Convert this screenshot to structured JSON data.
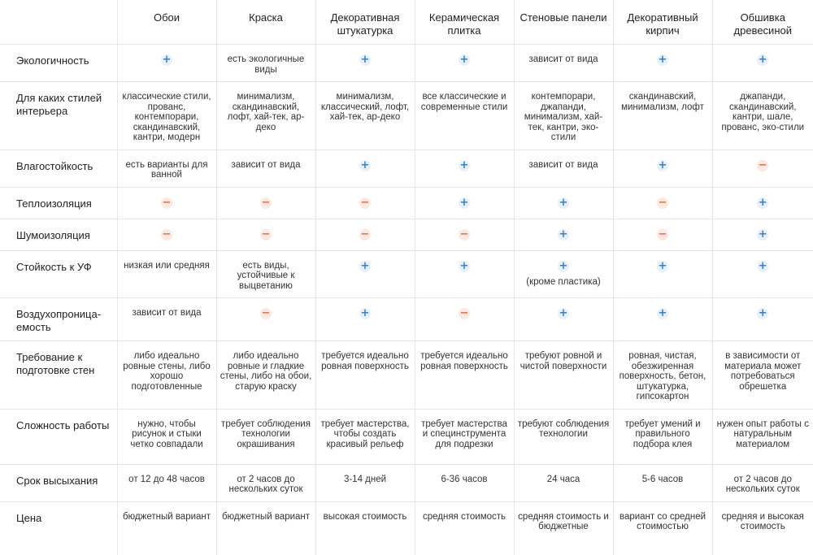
{
  "columns": [
    "Обои",
    "Краска",
    "Декоративная штукатурка",
    "Керамическая плитка",
    "Стеновые панели",
    "Декоративный кирпич",
    "Обшивка древесиной"
  ],
  "rows": [
    {
      "label": "Экологичность",
      "cells": [
        {
          "type": "plus"
        },
        {
          "type": "text",
          "text": "есть экологичные виды"
        },
        {
          "type": "plus"
        },
        {
          "type": "plus"
        },
        {
          "type": "text",
          "text": "зависит от вида"
        },
        {
          "type": "plus"
        },
        {
          "type": "plus"
        }
      ]
    },
    {
      "label": "Для каких стилей интерьера",
      "cells": [
        {
          "type": "text",
          "text": "классические стили, прованс, контемпорари, скандинавский, кантри, модерн"
        },
        {
          "type": "text",
          "text": "минимализм, скандинавский, лофт, хай-тек, ар-деко"
        },
        {
          "type": "text",
          "text": "минимализм, классический, лофт, хай-тек, ар-деко"
        },
        {
          "type": "text",
          "text": "все классические и современные стили"
        },
        {
          "type": "text",
          "text": "контемпорари, джапанди, минимализм, хай-тек, кантри, эко-стили"
        },
        {
          "type": "text",
          "text": "скандинавский, минимализм, лофт"
        },
        {
          "type": "text",
          "text": "джапанди, скандинавский, кантри, шале, прованс, эко-стили"
        }
      ]
    },
    {
      "label": "Влагостойкость",
      "cells": [
        {
          "type": "text",
          "text": "есть варианты для ванной"
        },
        {
          "type": "text",
          "text": "зависит от вида"
        },
        {
          "type": "plus"
        },
        {
          "type": "plus"
        },
        {
          "type": "text",
          "text": "зависит от вида"
        },
        {
          "type": "plus"
        },
        {
          "type": "minus"
        }
      ]
    },
    {
      "label": "Теплоизоляция",
      "cells": [
        {
          "type": "minus"
        },
        {
          "type": "minus"
        },
        {
          "type": "minus"
        },
        {
          "type": "plus"
        },
        {
          "type": "plus"
        },
        {
          "type": "minus"
        },
        {
          "type": "plus"
        }
      ]
    },
    {
      "label": "Шумоизоляция",
      "cells": [
        {
          "type": "minus"
        },
        {
          "type": "minus"
        },
        {
          "type": "minus"
        },
        {
          "type": "minus"
        },
        {
          "type": "plus"
        },
        {
          "type": "minus"
        },
        {
          "type": "plus"
        }
      ]
    },
    {
      "label": "Стойкость к УФ",
      "cells": [
        {
          "type": "text",
          "text": "низкая или средняя"
        },
        {
          "type": "text",
          "text": "есть виды, устойчивые к выцветанию"
        },
        {
          "type": "plus"
        },
        {
          "type": "plus"
        },
        {
          "type": "plus",
          "note": "(кроме пластика)"
        },
        {
          "type": "plus"
        },
        {
          "type": "plus"
        }
      ]
    },
    {
      "label": "Воздухопроница-емость",
      "cells": [
        {
          "type": "text",
          "text": "зависит от вида"
        },
        {
          "type": "minus"
        },
        {
          "type": "plus"
        },
        {
          "type": "minus"
        },
        {
          "type": "plus"
        },
        {
          "type": "plus"
        },
        {
          "type": "plus"
        }
      ]
    },
    {
      "label": "Требование к подготовке стен",
      "cells": [
        {
          "type": "text",
          "text": "либо идеально ровные стены, либо хорошо подготовленные"
        },
        {
          "type": "text",
          "text": "либо идеально ровные и гладкие стены, либо на обои, старую краску"
        },
        {
          "type": "text",
          "text": "требуется идеально ровная поверхность"
        },
        {
          "type": "text",
          "text": "требуется идеально ровная поверхность"
        },
        {
          "type": "text",
          "text": "требуют ровной и чистой поверхности"
        },
        {
          "type": "text",
          "text": "ровная, чистая, обезжиренная поверхность, бетон, штукатурка, гипсокартон"
        },
        {
          "type": "text",
          "text": "в зависимости от материала может потребоваться обрешетка"
        }
      ]
    },
    {
      "label": "Сложность работы",
      "cells": [
        {
          "type": "text",
          "text": "нужно, чтобы рисунок и стыки четко совпадали"
        },
        {
          "type": "text",
          "text": "требует соблюдения технологии окрашивания"
        },
        {
          "type": "text",
          "text": "требует мастерства, чтобы создать красивый рельеф"
        },
        {
          "type": "text",
          "text": "требует мастерства и специнструмента для подрезки"
        },
        {
          "type": "text",
          "text": "требуют соблюдения технологии"
        },
        {
          "type": "text",
          "text": "требует умений и правильного подбора клея"
        },
        {
          "type": "text",
          "text": "нужен опыт работы с натуральным материалом"
        }
      ]
    },
    {
      "label": "Срок высыхания",
      "cells": [
        {
          "type": "text",
          "text": "от 12 до 48 часов"
        },
        {
          "type": "text",
          "text": "от 2 часов до нескольких суток"
        },
        {
          "type": "text",
          "text": "3-14 дней"
        },
        {
          "type": "text",
          "text": "6-36 часов"
        },
        {
          "type": "text",
          "text": "24 часа"
        },
        {
          "type": "text",
          "text": "5-6 часов"
        },
        {
          "type": "text",
          "text": "от 2 часов до нескольких суток"
        }
      ]
    },
    {
      "label": "Цена",
      "cells": [
        {
          "type": "text",
          "text": "бюджетный вариант"
        },
        {
          "type": "text",
          "text": "бюджетный вариант"
        },
        {
          "type": "text",
          "text": "высокая стоимость"
        },
        {
          "type": "text",
          "text": "средняя стоимость"
        },
        {
          "type": "text",
          "text": "средняя стоимость и бюджетные"
        },
        {
          "type": "text",
          "text": "вариант со средней стоимостью"
        },
        {
          "type": "text",
          "text": "средняя и высокая стоимость"
        }
      ]
    }
  ],
  "symbols": {
    "plus": "+",
    "minus": "−"
  },
  "colors": {
    "plus_fg": "#3a7fc4",
    "plus_bg": "#e8f1fa",
    "minus_fg": "#e0714a",
    "minus_bg": "#fbe9e2",
    "border": "#e6e6e6"
  }
}
